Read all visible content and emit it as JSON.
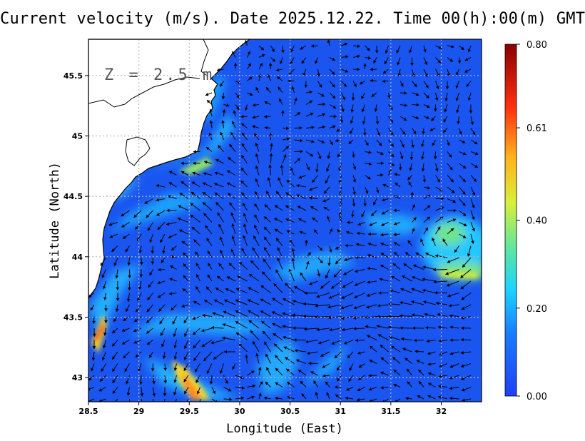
{
  "title": "Current velocity (m/s). Date 2025.12.22. Time 00(h):00(m) GMT",
  "depth_label": "Z = 2.5 m",
  "map": {
    "xlabel": "Longitude (East)",
    "ylabel": "Latitude (North)",
    "lon_range": [
      28.5,
      32.4
    ],
    "lat_range": [
      42.8,
      45.8
    ],
    "x_ticks": [
      "28.5",
      "29",
      "29.5",
      "30",
      "30.5",
      "31",
      "31.5",
      "32"
    ],
    "x_tick_values": [
      28.5,
      29,
      29.5,
      30,
      30.5,
      31,
      31.5,
      32
    ],
    "y_ticks": [
      "43",
      "43.5",
      "44",
      "44.5",
      "45",
      "45.5"
    ],
    "y_tick_values": [
      43,
      43.5,
      44,
      44.5,
      45,
      45.5
    ],
    "grid": true,
    "land_color": "#ffffff",
    "water_low_color": "#1a55f0"
  },
  "colorbar": {
    "labels": [
      "0.80",
      "0.61",
      "0.40",
      "0.20",
      "0.00"
    ],
    "label_values": [
      0.8,
      0.61,
      0.4,
      0.2,
      0.0
    ],
    "range": [
      0.0,
      0.8
    ],
    "stops": [
      "#1f3ff5",
      "#1a8cff",
      "#19d3ff",
      "#6ee07a",
      "#f5f52a",
      "#ff9a1a",
      "#ff2a10",
      "#8a0000"
    ]
  }
}
